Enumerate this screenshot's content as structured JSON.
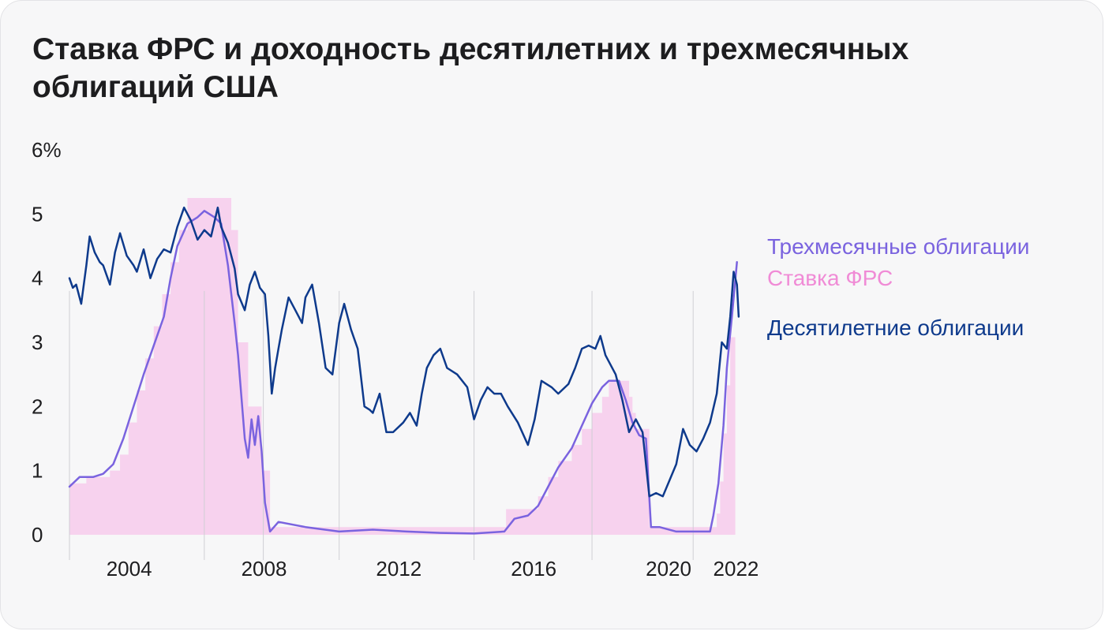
{
  "chart_data": {
    "type": "line",
    "title": "Ставка ФРС и доходность десятилетних и трехмесячных облигаций США",
    "xlabel": "",
    "ylabel": "",
    "xlim": [
      2003.0,
      2022.9
    ],
    "ylim": [
      0,
      6
    ],
    "x_ticks": [
      {
        "label": "2004",
        "value": 2004
      },
      {
        "label": "2008",
        "value": 2008
      },
      {
        "label": "2012",
        "value": 2012
      },
      {
        "label": "2016",
        "value": 2016
      },
      {
        "label": "2020",
        "value": 2020
      },
      {
        "label": "2022",
        "value": 2022
      }
    ],
    "y_ticks": [
      {
        "label": "0",
        "value": 0
      },
      {
        "label": "1",
        "value": 1
      },
      {
        "label": "2",
        "value": 2
      },
      {
        "label": "3",
        "value": 3
      },
      {
        "label": "4",
        "value": 4
      },
      {
        "label": "5",
        "value": 5
      },
      {
        "label": "6%",
        "value": 6
      }
    ],
    "vgrid_years": [
      2003.0,
      2007.0,
      2008.75,
      2011.0,
      2015.0,
      2018.5,
      2021.5
    ],
    "legend_position": "right",
    "series": [
      {
        "name": "Ставка ФРС",
        "kind": "area",
        "color": "#f7d2ee",
        "label_color": "#f08bd6",
        "points": [
          [
            2003.0,
            0.8
          ],
          [
            2003.2,
            0.8
          ],
          [
            2003.5,
            0.9
          ],
          [
            2003.8,
            0.9
          ],
          [
            2004.2,
            1.0
          ],
          [
            2004.5,
            1.25
          ],
          [
            2004.75,
            1.75
          ],
          [
            2005.0,
            2.25
          ],
          [
            2005.25,
            2.75
          ],
          [
            2005.5,
            3.25
          ],
          [
            2005.75,
            3.75
          ],
          [
            2006.0,
            4.25
          ],
          [
            2006.25,
            4.75
          ],
          [
            2006.5,
            5.25
          ],
          [
            2007.5,
            5.25
          ],
          [
            2007.8,
            4.75
          ],
          [
            2008.0,
            3.0
          ],
          [
            2008.3,
            2.0
          ],
          [
            2008.7,
            1.0
          ],
          [
            2008.95,
            0.12
          ],
          [
            2015.9,
            0.12
          ],
          [
            2015.95,
            0.4
          ],
          [
            2016.9,
            0.6
          ],
          [
            2017.2,
            0.9
          ],
          [
            2017.5,
            1.15
          ],
          [
            2017.9,
            1.4
          ],
          [
            2018.2,
            1.65
          ],
          [
            2018.5,
            1.9
          ],
          [
            2018.8,
            2.15
          ],
          [
            2019.0,
            2.4
          ],
          [
            2019.5,
            2.4
          ],
          [
            2019.6,
            2.15
          ],
          [
            2019.7,
            1.9
          ],
          [
            2019.8,
            1.65
          ],
          [
            2020.2,
            0.12
          ],
          [
            2022.1,
            0.12
          ],
          [
            2022.2,
            0.33
          ],
          [
            2022.3,
            0.83
          ],
          [
            2022.4,
            1.58
          ],
          [
            2022.5,
            2.33
          ],
          [
            2022.6,
            3.08
          ],
          [
            2022.75,
            3.83
          ]
        ]
      },
      {
        "name": "Трехмесячные облигации",
        "kind": "line",
        "color": "#7a63df",
        "points": [
          [
            2003.0,
            0.75
          ],
          [
            2003.3,
            0.9
          ],
          [
            2003.7,
            0.9
          ],
          [
            2004.0,
            0.95
          ],
          [
            2004.3,
            1.1
          ],
          [
            2004.6,
            1.5
          ],
          [
            2004.9,
            2.0
          ],
          [
            2005.2,
            2.5
          ],
          [
            2005.5,
            2.95
          ],
          [
            2005.8,
            3.4
          ],
          [
            2006.0,
            4.0
          ],
          [
            2006.2,
            4.5
          ],
          [
            2006.5,
            4.85
          ],
          [
            2006.8,
            4.95
          ],
          [
            2007.0,
            5.05
          ],
          [
            2007.3,
            4.95
          ],
          [
            2007.5,
            4.85
          ],
          [
            2007.7,
            4.2
          ],
          [
            2007.9,
            3.3
          ],
          [
            2008.0,
            2.8
          ],
          [
            2008.2,
            1.5
          ],
          [
            2008.3,
            1.2
          ],
          [
            2008.4,
            1.8
          ],
          [
            2008.5,
            1.4
          ],
          [
            2008.6,
            1.85
          ],
          [
            2008.7,
            1.3
          ],
          [
            2008.8,
            0.5
          ],
          [
            2008.95,
            0.05
          ],
          [
            2009.2,
            0.2
          ],
          [
            2010.0,
            0.12
          ],
          [
            2011.0,
            0.05
          ],
          [
            2012.0,
            0.08
          ],
          [
            2013.0,
            0.05
          ],
          [
            2014.0,
            0.03
          ],
          [
            2015.0,
            0.02
          ],
          [
            2015.9,
            0.05
          ],
          [
            2016.2,
            0.25
          ],
          [
            2016.6,
            0.3
          ],
          [
            2016.9,
            0.45
          ],
          [
            2017.2,
            0.75
          ],
          [
            2017.5,
            1.05
          ],
          [
            2017.9,
            1.35
          ],
          [
            2018.2,
            1.7
          ],
          [
            2018.5,
            2.05
          ],
          [
            2018.8,
            2.3
          ],
          [
            2019.0,
            2.4
          ],
          [
            2019.3,
            2.4
          ],
          [
            2019.5,
            2.1
          ],
          [
            2019.7,
            1.75
          ],
          [
            2019.9,
            1.55
          ],
          [
            2020.1,
            1.5
          ],
          [
            2020.25,
            0.12
          ],
          [
            2020.5,
            0.12
          ],
          [
            2021.0,
            0.05
          ],
          [
            2021.5,
            0.05
          ],
          [
            2022.0,
            0.05
          ],
          [
            2022.1,
            0.3
          ],
          [
            2022.25,
            0.8
          ],
          [
            2022.4,
            1.7
          ],
          [
            2022.5,
            2.6
          ],
          [
            2022.65,
            3.4
          ],
          [
            2022.8,
            4.25
          ]
        ]
      },
      {
        "name": "Десятилетние облигации",
        "kind": "line",
        "color": "#0e3a8c",
        "points": [
          [
            2003.0,
            4.0
          ],
          [
            2003.1,
            3.85
          ],
          [
            2003.2,
            3.9
          ],
          [
            2003.35,
            3.6
          ],
          [
            2003.5,
            4.2
          ],
          [
            2003.6,
            4.65
          ],
          [
            2003.75,
            4.4
          ],
          [
            2003.9,
            4.25
          ],
          [
            2004.0,
            4.2
          ],
          [
            2004.2,
            3.9
          ],
          [
            2004.35,
            4.4
          ],
          [
            2004.5,
            4.7
          ],
          [
            2004.7,
            4.35
          ],
          [
            2004.9,
            4.2
          ],
          [
            2005.0,
            4.1
          ],
          [
            2005.2,
            4.45
          ],
          [
            2005.4,
            4.0
          ],
          [
            2005.6,
            4.3
          ],
          [
            2005.8,
            4.45
          ],
          [
            2006.0,
            4.4
          ],
          [
            2006.2,
            4.8
          ],
          [
            2006.4,
            5.1
          ],
          [
            2006.6,
            4.9
          ],
          [
            2006.8,
            4.6
          ],
          [
            2007.0,
            4.75
          ],
          [
            2007.2,
            4.65
          ],
          [
            2007.4,
            5.1
          ],
          [
            2007.5,
            4.8
          ],
          [
            2007.7,
            4.55
          ],
          [
            2007.9,
            4.15
          ],
          [
            2008.0,
            3.75
          ],
          [
            2008.2,
            3.5
          ],
          [
            2008.35,
            3.9
          ],
          [
            2008.5,
            4.1
          ],
          [
            2008.65,
            3.85
          ],
          [
            2008.8,
            3.75
          ],
          [
            2008.9,
            3.1
          ],
          [
            2009.0,
            2.2
          ],
          [
            2009.1,
            2.6
          ],
          [
            2009.2,
            2.9
          ],
          [
            2009.3,
            3.2
          ],
          [
            2009.5,
            3.7
          ],
          [
            2009.7,
            3.5
          ],
          [
            2009.9,
            3.3
          ],
          [
            2010.0,
            3.7
          ],
          [
            2010.2,
            3.9
          ],
          [
            2010.4,
            3.3
          ],
          [
            2010.6,
            2.6
          ],
          [
            2010.8,
            2.5
          ],
          [
            2011.0,
            3.3
          ],
          [
            2011.15,
            3.6
          ],
          [
            2011.35,
            3.2
          ],
          [
            2011.55,
            2.9
          ],
          [
            2011.75,
            2.0
          ],
          [
            2011.9,
            1.95
          ],
          [
            2012.0,
            1.9
          ],
          [
            2012.2,
            2.2
          ],
          [
            2012.4,
            1.6
          ],
          [
            2012.6,
            1.6
          ],
          [
            2012.9,
            1.75
          ],
          [
            2013.1,
            1.9
          ],
          [
            2013.3,
            1.7
          ],
          [
            2013.45,
            2.2
          ],
          [
            2013.6,
            2.6
          ],
          [
            2013.8,
            2.8
          ],
          [
            2014.0,
            2.9
          ],
          [
            2014.2,
            2.6
          ],
          [
            2014.5,
            2.5
          ],
          [
            2014.8,
            2.3
          ],
          [
            2015.0,
            1.8
          ],
          [
            2015.2,
            2.1
          ],
          [
            2015.4,
            2.3
          ],
          [
            2015.6,
            2.2
          ],
          [
            2015.8,
            2.2
          ],
          [
            2016.0,
            2.0
          ],
          [
            2016.3,
            1.75
          ],
          [
            2016.6,
            1.4
          ],
          [
            2016.8,
            1.8
          ],
          [
            2017.0,
            2.4
          ],
          [
            2017.3,
            2.3
          ],
          [
            2017.5,
            2.2
          ],
          [
            2017.8,
            2.35
          ],
          [
            2018.0,
            2.6
          ],
          [
            2018.2,
            2.9
          ],
          [
            2018.4,
            2.95
          ],
          [
            2018.6,
            2.9
          ],
          [
            2018.75,
            3.1
          ],
          [
            2018.9,
            2.8
          ],
          [
            2019.0,
            2.7
          ],
          [
            2019.2,
            2.5
          ],
          [
            2019.4,
            2.1
          ],
          [
            2019.6,
            1.6
          ],
          [
            2019.8,
            1.8
          ],
          [
            2020.0,
            1.6
          ],
          [
            2020.2,
            0.6
          ],
          [
            2020.4,
            0.65
          ],
          [
            2020.6,
            0.6
          ],
          [
            2020.8,
            0.85
          ],
          [
            2021.0,
            1.1
          ],
          [
            2021.2,
            1.65
          ],
          [
            2021.4,
            1.4
          ],
          [
            2021.6,
            1.3
          ],
          [
            2021.8,
            1.5
          ],
          [
            2022.0,
            1.75
          ],
          [
            2022.2,
            2.2
          ],
          [
            2022.35,
            3.0
          ],
          [
            2022.5,
            2.9
          ],
          [
            2022.6,
            3.4
          ],
          [
            2022.7,
            4.1
          ],
          [
            2022.8,
            3.9
          ],
          [
            2022.85,
            3.4
          ]
        ]
      }
    ]
  }
}
